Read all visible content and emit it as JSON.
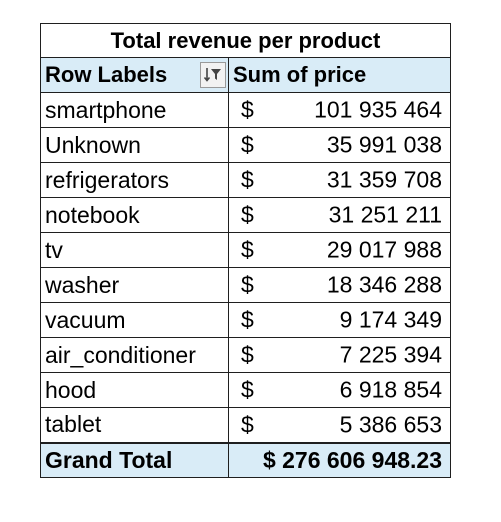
{
  "pivot": {
    "title": "Total revenue per product",
    "headers": {
      "row_labels": "Row Labels",
      "value": "Sum of price"
    },
    "currency": "$",
    "rows": [
      {
        "label": "smartphone",
        "amount": "101 935 464"
      },
      {
        "label": "Unknown",
        "amount": "35 991 038"
      },
      {
        "label": "refrigerators",
        "amount": "31 359 708"
      },
      {
        "label": "notebook",
        "amount": "31 251 211"
      },
      {
        "label": "tv",
        "amount": "29 017 988"
      },
      {
        "label": "washer",
        "amount": "18 346 288"
      },
      {
        "label": "vacuum",
        "amount": "9 174 349"
      },
      {
        "label": "air_conditioner",
        "amount": "7 225 394"
      },
      {
        "label": "hood",
        "amount": "6 918 854"
      },
      {
        "label": "tablet",
        "amount": "5 386 653"
      }
    ],
    "grand_total": {
      "label": "Grand Total",
      "amount": "$ 276 606 948.23"
    },
    "filter_icon": "sort-filter-icon",
    "colors": {
      "header_fill": "#d9ecf7",
      "border": "#1f1f1f"
    }
  }
}
